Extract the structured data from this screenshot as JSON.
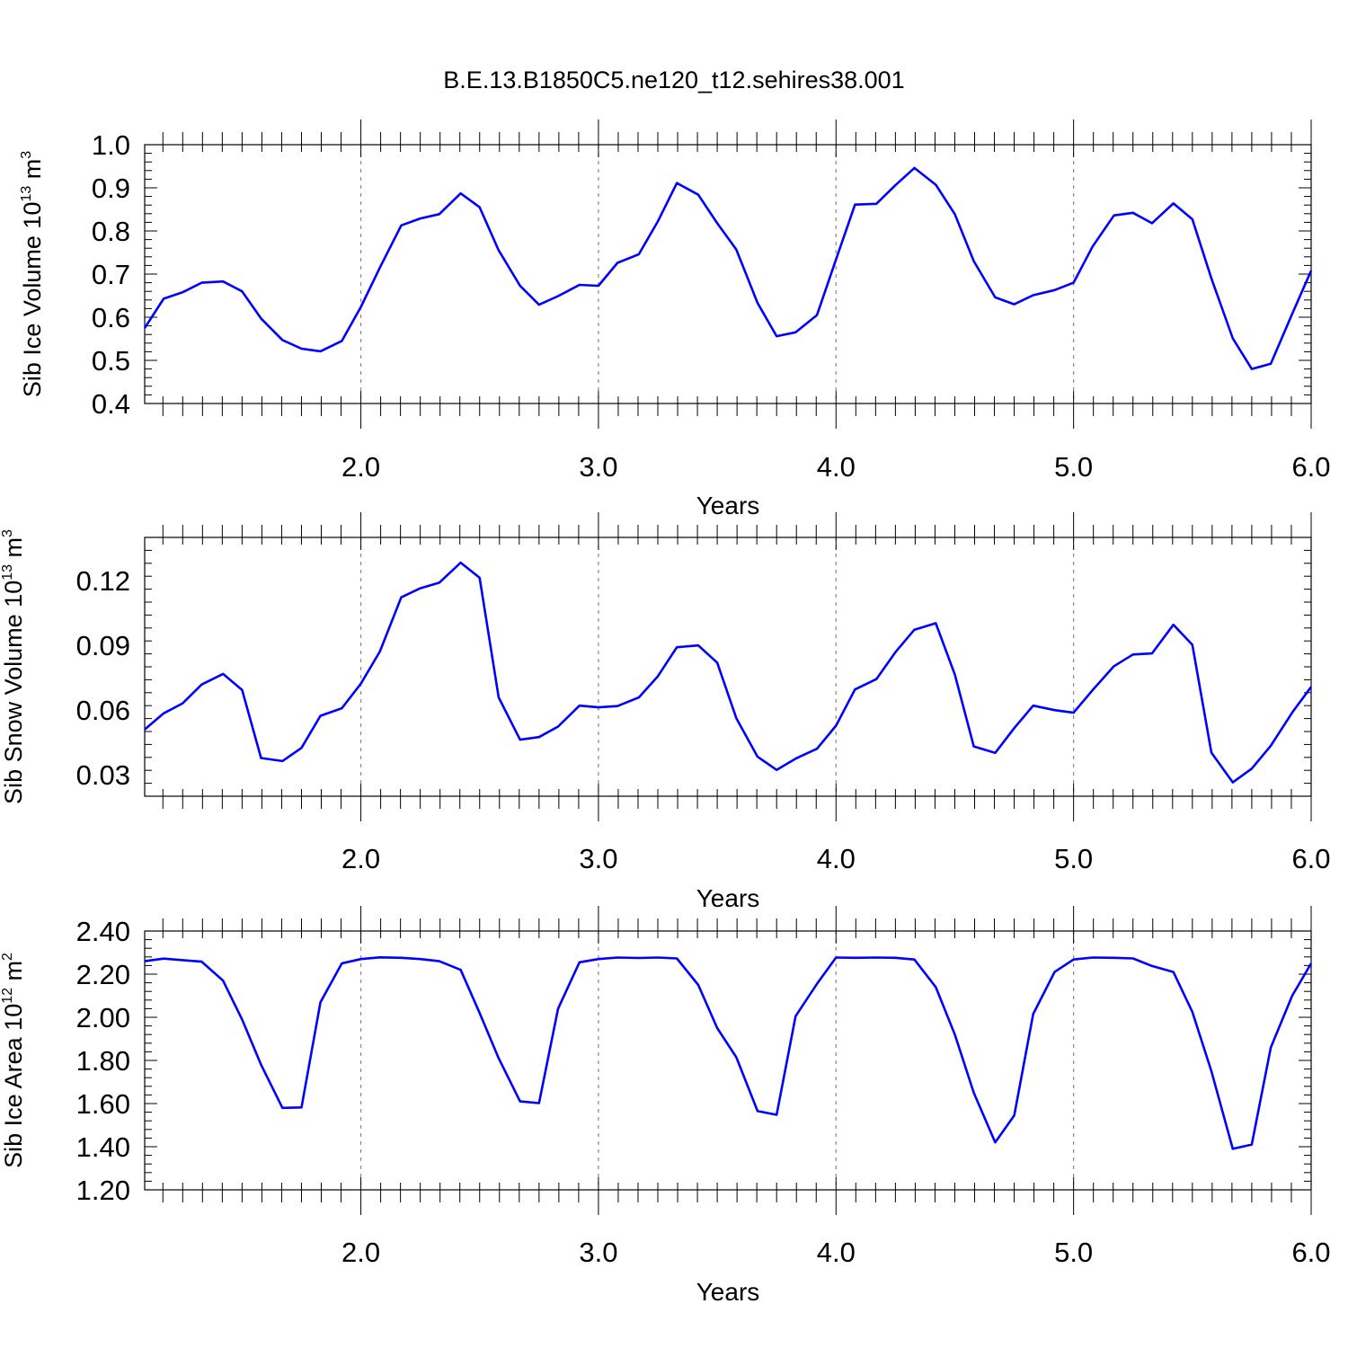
{
  "figure": {
    "title": "B.E.13.B1850C5.ne120_t12.sehires38.001"
  },
  "chart_data": [
    {
      "type": "line",
      "title": "",
      "xlabel": "Years",
      "ylabel": "Sib Ice Volume",
      "ylabel_exp_base": "10",
      "ylabel_exp": "13",
      "ylabel_unit": "m",
      "ylabel_unit_exp": "3",
      "xlim": [
        1.09,
        6.0
      ],
      "ylim": [
        0.4,
        1.0
      ],
      "xticks": [
        2.0,
        3.0,
        4.0,
        5.0,
        6.0
      ],
      "xtick_labels": [
        "2.0",
        "3.0",
        "4.0",
        "5.0",
        "6.0"
      ],
      "yticks": [
        0.4,
        0.5,
        0.6,
        0.7,
        0.8,
        0.9,
        1.0
      ],
      "ytick_labels": [
        "0.4",
        "0.5",
        "0.6",
        "0.7",
        "0.8",
        "0.9",
        "1.0"
      ],
      "grid_x": [
        2.0,
        3.0,
        4.0,
        5.0
      ],
      "series": [
        {
          "name": "Sib Ice Volume",
          "color": "#0000ff",
          "x": [
            1.09,
            1.17,
            1.25,
            1.33,
            1.42,
            1.5,
            1.58,
            1.67,
            1.75,
            1.83,
            1.92,
            2.0,
            2.08,
            2.17,
            2.25,
            2.33,
            2.42,
            2.5,
            2.58,
            2.67,
            2.75,
            2.83,
            2.92,
            3.0,
            3.08,
            3.17,
            3.25,
            3.33,
            3.42,
            3.5,
            3.58,
            3.67,
            3.75,
            3.83,
            3.92,
            4.0,
            4.08,
            4.17,
            4.25,
            4.33,
            4.42,
            4.5,
            4.58,
            4.67,
            4.75,
            4.83,
            4.92,
            5.0,
            5.08,
            5.17,
            5.25,
            5.33,
            5.42,
            5.5,
            5.58,
            5.67,
            5.75,
            5.83,
            5.92,
            6.0
          ],
          "y": [
            0.575,
            0.643,
            0.658,
            0.68,
            0.683,
            0.66,
            0.597,
            0.547,
            0.527,
            0.521,
            0.545,
            0.624,
            0.715,
            0.813,
            0.829,
            0.839,
            0.887,
            0.855,
            0.755,
            0.673,
            0.629,
            0.649,
            0.675,
            0.673,
            0.726,
            0.746,
            0.822,
            0.911,
            0.884,
            0.818,
            0.757,
            0.633,
            0.556,
            0.565,
            0.605,
            0.734,
            0.861,
            0.863,
            0.906,
            0.946,
            0.907,
            0.839,
            0.73,
            0.646,
            0.63,
            0.651,
            0.663,
            0.68,
            0.764,
            0.836,
            0.842,
            0.818,
            0.864,
            0.827,
            0.69,
            0.551,
            0.48,
            0.492,
            0.608,
            0.708
          ]
        }
      ]
    },
    {
      "type": "line",
      "title": "",
      "xlabel": "Years",
      "ylabel": "Sib Snow Volume",
      "ylabel_exp_base": "10",
      "ylabel_exp": "13",
      "ylabel_unit": "m",
      "ylabel_unit_exp": "3",
      "xlim": [
        1.09,
        6.0
      ],
      "ylim": [
        0.02,
        0.14
      ],
      "xticks": [
        2.0,
        3.0,
        4.0,
        5.0,
        6.0
      ],
      "xtick_labels": [
        "2.0",
        "3.0",
        "4.0",
        "5.0",
        "6.0"
      ],
      "yticks": [
        0.03,
        0.06,
        0.09,
        0.12
      ],
      "ytick_labels": [
        "0.03",
        "0.06",
        "0.09",
        "0.12"
      ],
      "grid_x": [
        2.0,
        3.0,
        4.0,
        5.0
      ],
      "series": [
        {
          "name": "Sib Snow Volume",
          "color": "#0000ff",
          "x": [
            1.09,
            1.17,
            1.25,
            1.33,
            1.42,
            1.5,
            1.58,
            1.67,
            1.75,
            1.83,
            1.92,
            2.0,
            2.08,
            2.17,
            2.25,
            2.33,
            2.42,
            2.5,
            2.58,
            2.67,
            2.75,
            2.83,
            2.92,
            3.0,
            3.08,
            3.17,
            3.25,
            3.33,
            3.42,
            3.5,
            3.58,
            3.67,
            3.75,
            3.83,
            3.92,
            4.0,
            4.08,
            4.17,
            4.25,
            4.33,
            4.42,
            4.5,
            4.58,
            4.67,
            4.75,
            4.83,
            4.92,
            5.0,
            5.08,
            5.17,
            5.25,
            5.33,
            5.42,
            5.5,
            5.58,
            5.67,
            5.75,
            5.83,
            5.92,
            6.0
          ],
          "y": [
            0.0509,
            0.0584,
            0.0631,
            0.0718,
            0.0767,
            0.0693,
            0.0377,
            0.0363,
            0.0424,
            0.0573,
            0.0608,
            0.0722,
            0.0871,
            0.1122,
            0.1164,
            0.119,
            0.1283,
            0.1213,
            0.0658,
            0.0462,
            0.0474,
            0.0523,
            0.062,
            0.0612,
            0.0618,
            0.0658,
            0.0756,
            0.0891,
            0.0899,
            0.0819,
            0.0562,
            0.0383,
            0.0322,
            0.0374,
            0.042,
            0.0527,
            0.0695,
            0.0743,
            0.0868,
            0.0972,
            0.1002,
            0.0764,
            0.0431,
            0.0401,
            0.0516,
            0.062,
            0.0599,
            0.0587,
            0.0692,
            0.0803,
            0.0857,
            0.0862,
            0.0995,
            0.0902,
            0.0402,
            0.0264,
            0.0328,
            0.0434,
            0.0588,
            0.0707
          ]
        }
      ]
    },
    {
      "type": "line",
      "title": "",
      "xlabel": "Years",
      "ylabel": "Sib Ice Area",
      "ylabel_exp_base": "10",
      "ylabel_exp": "12",
      "ylabel_unit": "m",
      "ylabel_unit_exp": "2",
      "xlim": [
        1.09,
        6.0
      ],
      "ylim": [
        1.2,
        2.4
      ],
      "xticks": [
        2.0,
        3.0,
        4.0,
        5.0,
        6.0
      ],
      "xtick_labels": [
        "2.0",
        "3.0",
        "4.0",
        "5.0",
        "6.0"
      ],
      "yticks": [
        1.2,
        1.4,
        1.6,
        1.8,
        2.0,
        2.2,
        2.4
      ],
      "ytick_labels": [
        "1.20",
        "1.40",
        "1.60",
        "1.80",
        "2.00",
        "2.20",
        "2.40"
      ],
      "grid_x": [
        2.0,
        3.0,
        4.0,
        5.0
      ],
      "series": [
        {
          "name": "Sib Ice Area",
          "color": "#0000ff",
          "x": [
            1.09,
            1.17,
            1.25,
            1.33,
            1.42,
            1.5,
            1.58,
            1.67,
            1.75,
            1.83,
            1.92,
            2.0,
            2.08,
            2.17,
            2.25,
            2.33,
            2.42,
            2.5,
            2.58,
            2.67,
            2.75,
            2.83,
            2.92,
            3.0,
            3.08,
            3.17,
            3.25,
            3.33,
            3.42,
            3.5,
            3.58,
            3.67,
            3.75,
            3.83,
            3.92,
            4.0,
            4.08,
            4.17,
            4.25,
            4.33,
            4.42,
            4.5,
            4.58,
            4.67,
            4.75,
            4.83,
            4.92,
            5.0,
            5.08,
            5.17,
            5.25,
            5.33,
            5.42,
            5.5,
            5.58,
            5.67,
            5.75,
            5.83,
            5.92,
            6.0
          ],
          "y": [
            2.26,
            2.272,
            2.265,
            2.258,
            2.17,
            1.99,
            1.78,
            1.58,
            1.582,
            2.07,
            2.25,
            2.27,
            2.278,
            2.276,
            2.27,
            2.26,
            2.22,
            2.02,
            1.81,
            1.61,
            1.602,
            2.04,
            2.255,
            2.27,
            2.277,
            2.275,
            2.277,
            2.273,
            2.15,
            1.95,
            1.815,
            1.565,
            1.548,
            2.005,
            2.155,
            2.277,
            2.276,
            2.277,
            2.276,
            2.268,
            2.14,
            1.92,
            1.65,
            1.42,
            1.545,
            2.015,
            2.21,
            2.268,
            2.277,
            2.276,
            2.273,
            2.238,
            2.21,
            2.025,
            1.75,
            1.39,
            1.41,
            1.86,
            2.1,
            2.25
          ]
        }
      ]
    }
  ]
}
